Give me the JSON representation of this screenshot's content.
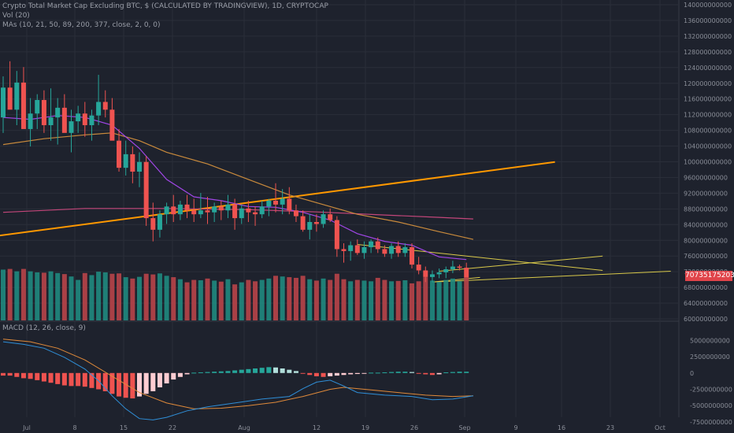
{
  "header": {
    "title": "Crypto Total Market Cap Excluding BTC, $ (CALCULATED BY TRADINGVIEW), 1D, CRYPTOCAP",
    "vol_label": "Vol (20)",
    "ma_label": "MAs (10, 21, 50, 89, 200, 377, close, 2, 0, 0)",
    "macd_label": "MACD (12, 26, close, 9)"
  },
  "price_tag": "70735175203",
  "colors": {
    "background": "#1e222d",
    "up": "#26a69a",
    "down": "#ef5350",
    "vol_up": "#1f8a80",
    "vol_down": "#b84449",
    "ma_fast": "#a046e6",
    "ma_mid": "#c98a3c",
    "ma_slow": "#c3467a",
    "trendline": "#ff9800",
    "triangle": "#d9c94a",
    "macd_line": "#2f8fd8",
    "signal_line": "#e08a3a"
  },
  "chart_data": [
    {
      "type": "candlestick",
      "y_axis": {
        "ticks": [
          "140000000000",
          "136000000000",
          "132000000000",
          "128000000000",
          "124000000000",
          "120000000000",
          "116000000000",
          "112000000000",
          "108000000000",
          "104000000000",
          "100000000000",
          "96000000000",
          "92000000000",
          "88000000000",
          "84000000000",
          "80000000000",
          "76000000000",
          "72000000000",
          "68000000000",
          "64000000000",
          "60000000000"
        ],
        "range": [
          60000000000,
          140000000000
        ]
      },
      "x_axis": {
        "ticks": [
          "Jul",
          "8",
          "15",
          "22",
          "Aug",
          "12",
          "19",
          "26",
          "Sep",
          "9",
          "16",
          "23",
          "Oct"
        ]
      },
      "candles": [
        [
          112.0,
          122.6,
          108.0,
          119.7
        ],
        [
          119.7,
          126.5,
          116.0,
          114.0
        ],
        [
          114.0,
          124.0,
          110.0,
          121.0
        ],
        [
          121.0,
          125.0,
          111.0,
          109.0
        ],
        [
          109.0,
          117.0,
          104.5,
          113.0
        ],
        [
          113.0,
          118.0,
          109.0,
          116.5
        ],
        [
          116.5,
          119.0,
          108.0,
          110.0
        ],
        [
          110.0,
          119.5,
          106.0,
          112.0
        ],
        [
          112.0,
          117.0,
          105.0,
          114.5
        ],
        [
          114.5,
          118.0,
          110.0,
          108.0
        ],
        [
          108.0,
          114.0,
          103.0,
          111.0
        ],
        [
          111.0,
          115.0,
          108.0,
          113.0
        ],
        [
          113.0,
          116.0,
          107.0,
          110.0
        ],
        [
          110.0,
          114.0,
          106.0,
          112.5
        ],
        [
          112.5,
          123.0,
          110.0,
          116.0
        ],
        [
          116.0,
          119.0,
          112.0,
          114.0
        ],
        [
          114.0,
          117.0,
          110.0,
          106.0
        ],
        [
          106.0,
          109.0,
          98.0,
          99.0
        ],
        [
          99.0,
          106.0,
          97.0,
          102.5
        ],
        [
          102.5,
          104.5,
          95.0,
          98.0
        ],
        [
          98.0,
          103.0,
          94.0,
          100.5
        ],
        [
          100.5,
          102.0,
          84.0,
          86.0
        ],
        [
          86.0,
          90.0,
          80.0,
          83.0
        ],
        [
          83.0,
          88.0,
          81.0,
          87.0
        ],
        [
          87.0,
          90.0,
          84.5,
          89.0
        ],
        [
          89.0,
          92.0,
          85.0,
          87.0
        ],
        [
          87.0,
          90.5,
          85.5,
          89.5
        ],
        [
          89.5,
          92.0,
          86.0,
          88.0
        ],
        [
          88.0,
          91.0,
          85.0,
          87.0
        ],
        [
          87.0,
          92.5,
          86.0,
          88.0
        ],
        [
          88.0,
          91.5,
          84.5,
          87.5
        ],
        [
          87.5,
          90.0,
          85.0,
          89.0
        ],
        [
          89.0,
          90.5,
          85.5,
          88.0
        ],
        [
          88.0,
          92.0,
          86.0,
          89.5
        ],
        [
          89.5,
          91.0,
          83.0,
          86.0
        ],
        [
          86.0,
          89.5,
          84.5,
          88.5
        ],
        [
          88.5,
          90.5,
          85.0,
          87.5
        ],
        [
          87.5,
          89.0,
          84.0,
          87.0
        ],
        [
          87.0,
          90.5,
          86.0,
          89.0
        ],
        [
          89.0,
          91.0,
          86.5,
          90.5
        ],
        [
          90.5,
          95.0,
          87.5,
          89.5
        ],
        [
          89.5,
          93.5,
          87.0,
          91.0
        ],
        [
          91.0,
          94.0,
          87.0,
          88.0
        ],
        [
          88.0,
          89.5,
          85.0,
          86.5
        ],
        [
          86.5,
          88.0,
          82.5,
          83.0
        ],
        [
          83.0,
          87.0,
          80.5,
          85.0
        ],
        [
          85.0,
          87.0,
          82.5,
          84.5
        ],
        [
          84.5,
          88.0,
          83.5,
          87.0
        ],
        [
          87.0,
          88.5,
          85.0,
          85.5
        ],
        [
          85.5,
          86.5,
          76.0,
          78.0
        ],
        [
          78.0,
          79.5,
          74.5,
          77.5
        ],
        [
          77.5,
          80.0,
          75.0,
          79.0
        ],
        [
          79.0,
          80.5,
          76.5,
          77.0
        ],
        [
          77.0,
          80.0,
          75.5,
          78.5
        ],
        [
          78.5,
          80.5,
          77.0,
          80.0
        ],
        [
          80.0,
          81.0,
          77.0,
          78.0
        ],
        [
          78.0,
          79.0,
          76.0,
          76.8
        ],
        [
          76.8,
          79.5,
          75.5,
          78.8
        ],
        [
          78.8,
          80.0,
          76.0,
          77.0
        ],
        [
          77.0,
          79.5,
          76.0,
          78.5
        ],
        [
          78.5,
          79.5,
          73.0,
          74.0
        ],
        [
          74.0,
          76.0,
          71.5,
          72.5
        ],
        [
          72.5,
          73.5,
          69.5,
          70.8
        ],
        [
          70.8,
          72.5,
          69.5,
          71.5
        ],
        [
          71.5,
          73.0,
          70.5,
          72.0
        ],
        [
          72.0,
          73.5,
          70.5,
          72.8
        ],
        [
          72.8,
          75.0,
          71.8,
          73.5
        ],
        [
          73.5,
          74.0,
          72.5,
          73.2
        ],
        [
          73.2,
          74.5,
          71.0,
          70.7
        ]
      ],
      "volume": [
        {
          "v": 148,
          "up": true
        },
        {
          "v": 150,
          "up": false
        },
        {
          "v": 143,
          "up": true
        },
        {
          "v": 150,
          "up": false
        },
        {
          "v": 143,
          "up": true
        },
        {
          "v": 140,
          "up": true
        },
        {
          "v": 139,
          "up": false
        },
        {
          "v": 143,
          "up": true
        },
        {
          "v": 138,
          "up": true
        },
        {
          "v": 135,
          "up": false
        },
        {
          "v": 128,
          "up": true
        },
        {
          "v": 118,
          "up": true
        },
        {
          "v": 138,
          "up": false
        },
        {
          "v": 132,
          "up": true
        },
        {
          "v": 142,
          "up": true
        },
        {
          "v": 140,
          "up": true
        },
        {
          "v": 136,
          "up": false
        },
        {
          "v": 137,
          "up": false
        },
        {
          "v": 126,
          "up": true
        },
        {
          "v": 122,
          "up": false
        },
        {
          "v": 127,
          "up": true
        },
        {
          "v": 136,
          "up": false
        },
        {
          "v": 134,
          "up": false
        },
        {
          "v": 137,
          "up": true
        },
        {
          "v": 130,
          "up": true
        },
        {
          "v": 126,
          "up": false
        },
        {
          "v": 120,
          "up": true
        },
        {
          "v": 111,
          "up": false
        },
        {
          "v": 118,
          "up": false
        },
        {
          "v": 117,
          "up": true
        },
        {
          "v": 122,
          "up": false
        },
        {
          "v": 116,
          "up": true
        },
        {
          "v": 113,
          "up": false
        },
        {
          "v": 120,
          "up": true
        },
        {
          "v": 105,
          "up": false
        },
        {
          "v": 111,
          "up": true
        },
        {
          "v": 118,
          "up": false
        },
        {
          "v": 114,
          "up": false
        },
        {
          "v": 118,
          "up": true
        },
        {
          "v": 122,
          "up": true
        },
        {
          "v": 130,
          "up": false
        },
        {
          "v": 128,
          "up": true
        },
        {
          "v": 126,
          "up": false
        },
        {
          "v": 124,
          "up": false
        },
        {
          "v": 130,
          "up": false
        },
        {
          "v": 120,
          "up": true
        },
        {
          "v": 116,
          "up": false
        },
        {
          "v": 122,
          "up": true
        },
        {
          "v": 118,
          "up": false
        },
        {
          "v": 136,
          "up": false
        },
        {
          "v": 120,
          "up": false
        },
        {
          "v": 114,
          "up": true
        },
        {
          "v": 118,
          "up": false
        },
        {
          "v": 116,
          "up": true
        },
        {
          "v": 114,
          "up": true
        },
        {
          "v": 124,
          "up": false
        },
        {
          "v": 118,
          "up": false
        },
        {
          "v": 114,
          "up": true
        },
        {
          "v": 115,
          "up": false
        },
        {
          "v": 117,
          "up": true
        },
        {
          "v": 108,
          "up": false
        },
        {
          "v": 114,
          "up": false
        },
        {
          "v": 126,
          "up": false
        },
        {
          "v": 116,
          "up": true
        },
        {
          "v": 112,
          "up": true
        },
        {
          "v": 118,
          "up": true
        },
        {
          "v": 122,
          "up": true
        },
        {
          "v": 114,
          "up": true
        },
        {
          "v": 126,
          "up": false
        }
      ],
      "ma_fast": [
        [
          0,
          112
        ],
        [
          4,
          111.5
        ],
        [
          8,
          112.5
        ],
        [
          12,
          112
        ],
        [
          16,
          110
        ],
        [
          20,
          104
        ],
        [
          24,
          96
        ],
        [
          28,
          91.5
        ],
        [
          32,
          90.5
        ],
        [
          36,
          89
        ],
        [
          40,
          88.8
        ],
        [
          44,
          87.5
        ],
        [
          48,
          85.5
        ],
        [
          52,
          82
        ],
        [
          56,
          80
        ],
        [
          60,
          79
        ],
        [
          64,
          76
        ],
        [
          68,
          75.3
        ]
      ],
      "ma_mid": [
        [
          0,
          105
        ],
        [
          6,
          106.5
        ],
        [
          12,
          107.5
        ],
        [
          16,
          108
        ],
        [
          20,
          106
        ],
        [
          24,
          103
        ],
        [
          30,
          100
        ],
        [
          36,
          96
        ],
        [
          42,
          92
        ],
        [
          46,
          90
        ],
        [
          52,
          87
        ],
        [
          58,
          85
        ],
        [
          64,
          82.5
        ],
        [
          69,
          80.5
        ]
      ],
      "ma_slow": [
        [
          0,
          87.5
        ],
        [
          12,
          88.5
        ],
        [
          24,
          88.5
        ],
        [
          36,
          88.2
        ],
        [
          46,
          87.6
        ],
        [
          56,
          86.8
        ],
        [
          64,
          86.2
        ],
        [
          69,
          85.8
        ]
      ],
      "trendline": [
        [
          -0.5,
          81.5
        ],
        [
          81,
          100.5
        ]
      ],
      "triangle_upper": [
        [
          52,
          79.2
        ],
        [
          88,
          72.5
        ]
      ],
      "triangle_lower": [
        [
          63,
          69.5
        ],
        [
          98,
          72.3
        ]
      ],
      "triangle_top_edge": [
        [
          64,
          72.3
        ],
        [
          88,
          76.2
        ]
      ],
      "triangle_base": [
        [
          63,
          69.5
        ],
        [
          70,
          70.7
        ]
      ]
    },
    {
      "type": "line",
      "title": "MACD (12, 26, close, 9)",
      "y_axis": {
        "ticks": [
          "5000000000",
          "2500000000",
          "0",
          "-2500000000",
          "-5000000000",
          "-7500000000"
        ],
        "range": [
          -8000000000,
          6500000000
        ]
      },
      "macd": [
        [
          0,
          4.8
        ],
        [
          3,
          4.4
        ],
        [
          6,
          3.8
        ],
        [
          9,
          2.4
        ],
        [
          12,
          0.6
        ],
        [
          14,
          -1.2
        ],
        [
          16,
          -3.5
        ],
        [
          18,
          -5.5
        ],
        [
          20,
          -7.0
        ],
        [
          22,
          -7.2
        ],
        [
          24,
          -6.8
        ],
        [
          27,
          -5.8
        ],
        [
          30,
          -5.2
        ],
        [
          34,
          -4.6
        ],
        [
          38,
          -4.0
        ],
        [
          42,
          -3.6
        ],
        [
          44,
          -2.4
        ],
        [
          46,
          -1.4
        ],
        [
          48,
          -1.1
        ],
        [
          50,
          -2.0
        ],
        [
          52,
          -3.0
        ],
        [
          56,
          -3.4
        ],
        [
          60,
          -3.6
        ],
        [
          63,
          -4.1
        ],
        [
          66,
          -4.0
        ],
        [
          69,
          -3.5
        ]
      ],
      "signal": [
        [
          0,
          5.2
        ],
        [
          4,
          4.8
        ],
        [
          8,
          3.8
        ],
        [
          12,
          2.0
        ],
        [
          16,
          -0.5
        ],
        [
          20,
          -3.0
        ],
        [
          24,
          -4.6
        ],
        [
          28,
          -5.5
        ],
        [
          32,
          -5.4
        ],
        [
          36,
          -5.0
        ],
        [
          40,
          -4.5
        ],
        [
          44,
          -3.6
        ],
        [
          48,
          -2.5
        ],
        [
          50,
          -2.2
        ],
        [
          54,
          -2.6
        ],
        [
          58,
          -3.0
        ],
        [
          62,
          -3.4
        ],
        [
          66,
          -3.6
        ],
        [
          69,
          -3.5
        ]
      ],
      "histogram": [
        -0.4,
        -0.4,
        -0.6,
        -0.8,
        -0.9,
        -1.1,
        -1.3,
        -1.5,
        -1.7,
        -1.9,
        -2.0,
        -2.0,
        -2.1,
        -2.3,
        -2.5,
        -2.8,
        -3.2,
        -3.6,
        -3.8,
        -3.9,
        -3.6,
        -3.2,
        -2.8,
        -2.2,
        -1.6,
        -1.0,
        -0.6,
        -0.2,
        0.05,
        0.1,
        0.15,
        0.2,
        0.25,
        0.3,
        0.4,
        0.5,
        0.6,
        0.7,
        0.8,
        0.9,
        0.85,
        0.7,
        0.5,
        0.3,
        -0.1,
        -0.3,
        -0.5,
        -0.6,
        -0.5,
        -0.4,
        -0.3,
        -0.2,
        -0.15,
        -0.1,
        0.05,
        0.05,
        0.1,
        0.15,
        0.2,
        0.2,
        0.15,
        -0.1,
        -0.2,
        -0.3,
        -0.2,
        0.1,
        0.15,
        0.2,
        0.2
      ]
    }
  ]
}
